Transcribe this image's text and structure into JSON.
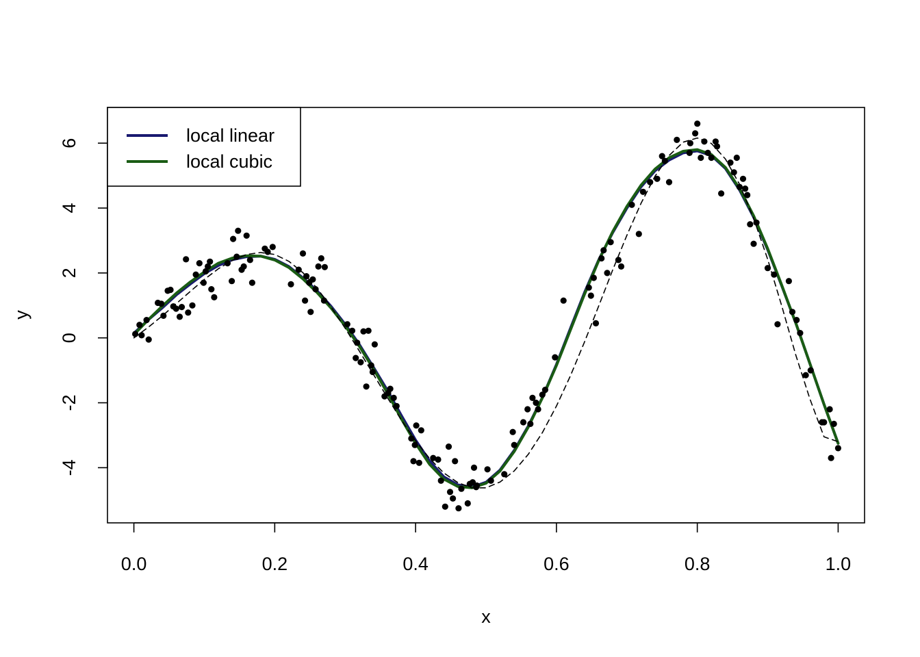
{
  "chart_data": {
    "type": "scatter",
    "title": "",
    "xlabel": "x",
    "ylabel": "y",
    "xlim": [
      -0.0375,
      1.0375
    ],
    "ylim": [
      -5.7,
      7.1
    ],
    "xticks": [
      0.0,
      0.2,
      0.4,
      0.6,
      0.8,
      1.0
    ],
    "xtick_labels": [
      "0.0",
      "0.2",
      "0.4",
      "0.6",
      "0.8",
      "1.0"
    ],
    "yticks": [
      -4,
      -2,
      0,
      2,
      4,
      6
    ],
    "ytick_labels": [
      "-4",
      "-2",
      "0",
      "2",
      "4",
      "6"
    ],
    "grid": false,
    "legend": {
      "position": "top-left",
      "entries": [
        {
          "label": "local linear",
          "color": "#191970"
        },
        {
          "label": "local cubic",
          "color": "#1a5c14"
        }
      ]
    },
    "points": {
      "color": "#000000",
      "x": [
        0.002,
        0.008,
        0.011,
        0.018,
        0.021,
        0.034,
        0.039,
        0.042,
        0.048,
        0.052,
        0.056,
        0.06,
        0.065,
        0.068,
        0.074,
        0.077,
        0.083,
        0.088,
        0.093,
        0.099,
        0.102,
        0.105,
        0.108,
        0.11,
        0.114,
        0.133,
        0.139,
        0.141,
        0.146,
        0.148,
        0.153,
        0.156,
        0.16,
        0.165,
        0.168,
        0.186,
        0.19,
        0.197,
        0.223,
        0.234,
        0.24,
        0.243,
        0.245,
        0.249,
        0.251,
        0.254,
        0.258,
        0.262,
        0.266,
        0.27,
        0.271,
        0.303,
        0.31,
        0.315,
        0.317,
        0.322,
        0.326,
        0.33,
        0.333,
        0.337,
        0.339,
        0.342,
        0.356,
        0.361,
        0.364,
        0.369,
        0.373,
        0.394,
        0.397,
        0.399,
        0.401,
        0.405,
        0.408,
        0.425,
        0.432,
        0.436,
        0.442,
        0.447,
        0.449,
        0.453,
        0.456,
        0.461,
        0.465,
        0.474,
        0.477,
        0.481,
        0.483,
        0.486,
        0.487,
        0.502,
        0.507,
        0.526,
        0.538,
        0.54,
        0.553,
        0.559,
        0.563,
        0.566,
        0.571,
        0.574,
        0.58,
        0.584,
        0.598,
        0.61,
        0.646,
        0.649,
        0.653,
        0.656,
        0.664,
        0.667,
        0.672,
        0.677,
        0.688,
        0.692,
        0.707,
        0.717,
        0.723,
        0.733,
        0.743,
        0.75,
        0.754,
        0.76,
        0.771,
        0.789,
        0.79,
        0.797,
        0.8,
        0.805,
        0.81,
        0.815,
        0.82,
        0.826,
        0.828,
        0.834,
        0.847,
        0.852,
        0.856,
        0.86,
        0.865,
        0.868,
        0.871,
        0.875,
        0.88,
        0.884,
        0.9,
        0.909,
        0.914,
        0.93,
        0.935,
        0.941,
        0.946,
        0.954,
        0.961,
        0.977,
        0.98,
        0.988,
        0.99,
        0.994,
        1.0
      ],
      "y": [
        0.12,
        0.4,
        0.08,
        0.55,
        -0.05,
        1.08,
        1.05,
        0.68,
        1.45,
        1.48,
        0.97,
        0.9,
        0.65,
        0.95,
        2.42,
        0.78,
        1.0,
        1.95,
        2.3,
        1.7,
        2.05,
        2.2,
        2.35,
        1.5,
        1.25,
        2.3,
        1.75,
        3.05,
        2.5,
        3.3,
        2.1,
        2.2,
        3.15,
        2.4,
        1.7,
        2.75,
        2.65,
        2.8,
        1.65,
        2.1,
        2.6,
        1.15,
        1.9,
        1.7,
        0.8,
        1.8,
        1.5,
        2.2,
        2.45,
        1.15,
        2.18,
        0.42,
        0.22,
        -0.62,
        -0.15,
        -0.75,
        0.2,
        -1.5,
        0.22,
        -0.85,
        -1.05,
        -0.2,
        -1.8,
        -1.7,
        -1.57,
        -1.85,
        -2.1,
        -3.1,
        -3.8,
        -3.3,
        -2.7,
        -3.85,
        -2.85,
        -3.7,
        -3.75,
        -4.4,
        -5.2,
        -3.35,
        -4.75,
        -4.95,
        -3.8,
        -5.25,
        -4.65,
        -5.1,
        -4.5,
        -4.45,
        -4.0,
        -4.6,
        -4.55,
        -4.05,
        -4.4,
        -4.2,
        -2.9,
        -3.3,
        -2.6,
        -2.2,
        -2.65,
        -1.85,
        -2.0,
        -2.2,
        -1.75,
        -1.6,
        -0.6,
        1.15,
        1.55,
        1.3,
        1.85,
        0.45,
        2.45,
        2.7,
        2.0,
        2.95,
        2.4,
        2.2,
        4.1,
        3.2,
        4.5,
        4.8,
        4.9,
        5.6,
        5.45,
        4.8,
        6.1,
        5.7,
        6.0,
        6.3,
        6.6,
        5.55,
        6.05,
        5.7,
        5.55,
        6.05,
        5.9,
        4.45,
        5.4,
        5.1,
        5.55,
        4.65,
        4.9,
        4.6,
        4.4,
        3.5,
        2.9,
        3.55,
        2.15,
        1.95,
        0.42,
        1.75,
        0.8,
        0.55,
        0.15,
        -1.15,
        -1.0,
        -2.6,
        -2.6,
        -2.2,
        -3.7,
        -2.65,
        -3.4
      ]
    },
    "series": [
      {
        "name": "local linear",
        "color": "#191970",
        "style": "solid",
        "x": [
          0.0,
          0.02,
          0.04,
          0.06,
          0.08,
          0.1,
          0.12,
          0.14,
          0.16,
          0.18,
          0.2,
          0.22,
          0.24,
          0.26,
          0.28,
          0.3,
          0.32,
          0.34,
          0.36,
          0.38,
          0.4,
          0.42,
          0.44,
          0.46,
          0.48,
          0.5,
          0.52,
          0.54,
          0.56,
          0.58,
          0.6,
          0.62,
          0.64,
          0.66,
          0.68,
          0.7,
          0.72,
          0.74,
          0.76,
          0.78,
          0.8,
          0.82,
          0.84,
          0.86,
          0.88,
          0.9,
          0.92,
          0.94,
          0.96,
          0.98,
          1.0
        ],
        "y": [
          0.14,
          0.55,
          0.92,
          1.32,
          1.66,
          1.98,
          2.23,
          2.41,
          2.5,
          2.52,
          2.42,
          2.2,
          1.85,
          1.45,
          0.97,
          0.42,
          -0.2,
          -0.9,
          -1.62,
          -2.4,
          -3.15,
          -3.8,
          -4.28,
          -4.53,
          -4.6,
          -4.45,
          -4.07,
          -3.47,
          -2.72,
          -1.84,
          -0.82,
          0.3,
          1.4,
          2.4,
          3.25,
          4.0,
          4.65,
          5.15,
          5.48,
          5.7,
          5.76,
          5.62,
          5.22,
          4.56,
          3.72,
          2.72,
          1.6,
          0.45,
          -0.8,
          -2.05,
          -3.25
        ]
      },
      {
        "name": "local cubic",
        "color": "#1a5c14",
        "style": "solid",
        "x": [
          0.0,
          0.02,
          0.04,
          0.06,
          0.08,
          0.1,
          0.12,
          0.14,
          0.16,
          0.18,
          0.2,
          0.22,
          0.24,
          0.26,
          0.28,
          0.3,
          0.32,
          0.34,
          0.36,
          0.38,
          0.4,
          0.42,
          0.44,
          0.46,
          0.48,
          0.5,
          0.52,
          0.54,
          0.56,
          0.58,
          0.6,
          0.62,
          0.64,
          0.66,
          0.68,
          0.7,
          0.72,
          0.74,
          0.76,
          0.78,
          0.8,
          0.82,
          0.84,
          0.86,
          0.88,
          0.9,
          0.92,
          0.94,
          0.96,
          0.98,
          1.0
        ],
        "y": [
          0.1,
          0.55,
          0.97,
          1.37,
          1.72,
          2.03,
          2.3,
          2.46,
          2.53,
          2.52,
          2.4,
          2.17,
          1.82,
          1.4,
          0.92,
          0.37,
          -0.25,
          -0.95,
          -1.7,
          -2.5,
          -3.25,
          -3.9,
          -4.35,
          -4.58,
          -4.62,
          -4.48,
          -4.1,
          -3.5,
          -2.75,
          -1.85,
          -0.85,
          0.25,
          1.35,
          2.38,
          3.28,
          4.05,
          4.7,
          5.2,
          5.55,
          5.75,
          5.8,
          5.65,
          5.25,
          4.6,
          3.76,
          2.75,
          1.62,
          0.45,
          -0.8,
          -2.05,
          -3.25
        ]
      },
      {
        "name": "",
        "color": "#000000",
        "style": "dashed",
        "x": [
          0.0,
          0.02,
          0.04,
          0.06,
          0.08,
          0.1,
          0.12,
          0.14,
          0.16,
          0.18,
          0.2,
          0.22,
          0.24,
          0.26,
          0.28,
          0.3,
          0.32,
          0.34,
          0.36,
          0.38,
          0.4,
          0.42,
          0.44,
          0.46,
          0.48,
          0.5,
          0.52,
          0.54,
          0.56,
          0.58,
          0.6,
          0.62,
          0.64,
          0.66,
          0.68,
          0.7,
          0.72,
          0.74,
          0.76,
          0.78,
          0.8,
          0.82,
          0.84,
          0.86,
          0.88,
          0.9,
          0.92,
          0.94,
          0.96,
          0.98,
          1.0
        ],
        "y": [
          0.0,
          0.32,
          0.67,
          1.05,
          1.43,
          1.8,
          2.13,
          2.39,
          2.57,
          2.63,
          2.57,
          2.36,
          2.01,
          1.53,
          0.95,
          0.3,
          -0.4,
          -1.12,
          -1.84,
          -2.54,
          -3.17,
          -3.72,
          -4.16,
          -4.46,
          -4.62,
          -4.62,
          -4.44,
          -4.1,
          -3.59,
          -2.92,
          -2.1,
          -1.16,
          -0.12,
          0.98,
          2.1,
          3.16,
          4.14,
          4.98,
          5.62,
          6.03,
          6.16,
          5.99,
          5.51,
          4.73,
          3.68,
          2.42,
          0.98,
          -0.54,
          -1.89,
          -3.05,
          -3.2
        ]
      }
    ]
  }
}
